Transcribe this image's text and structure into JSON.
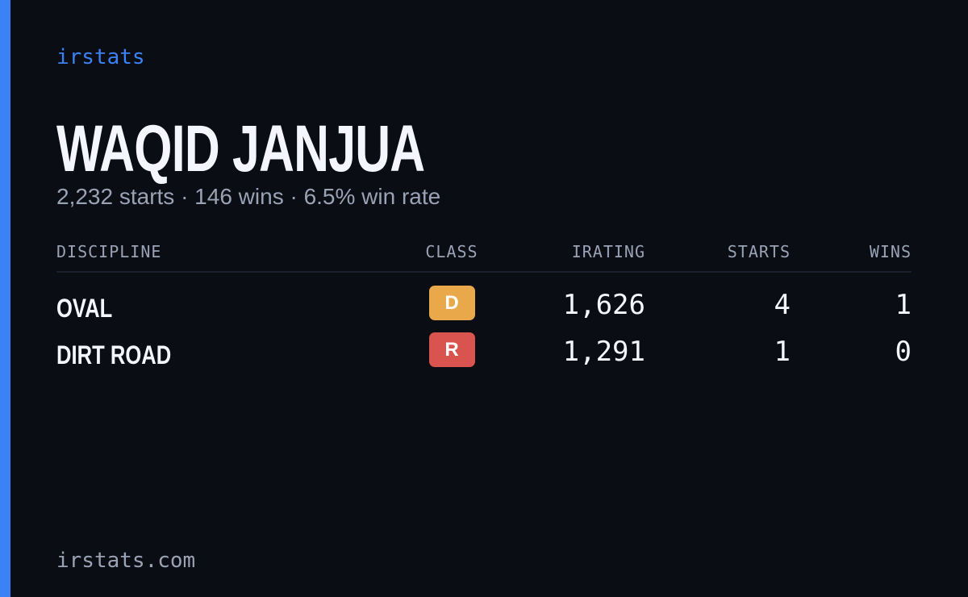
{
  "brand": "irstats",
  "name": "WAQID JANJUA",
  "summary": "2,232 starts · 146 wins · 6.5% win rate",
  "table": {
    "headers": [
      "DISCIPLINE",
      "CLASS",
      "IRATING",
      "STARTS",
      "WINS"
    ],
    "rows": [
      {
        "discipline": "OVAL",
        "class": "D",
        "class_color": "#e9a94b",
        "irating": "1,626",
        "starts": 4,
        "wins": 1
      },
      {
        "discipline": "DIRT ROAD",
        "class": "R",
        "class_color": "#d9534f",
        "irating": "1,291",
        "starts": 1,
        "wins": 0
      }
    ]
  },
  "footer": "irstats.com"
}
